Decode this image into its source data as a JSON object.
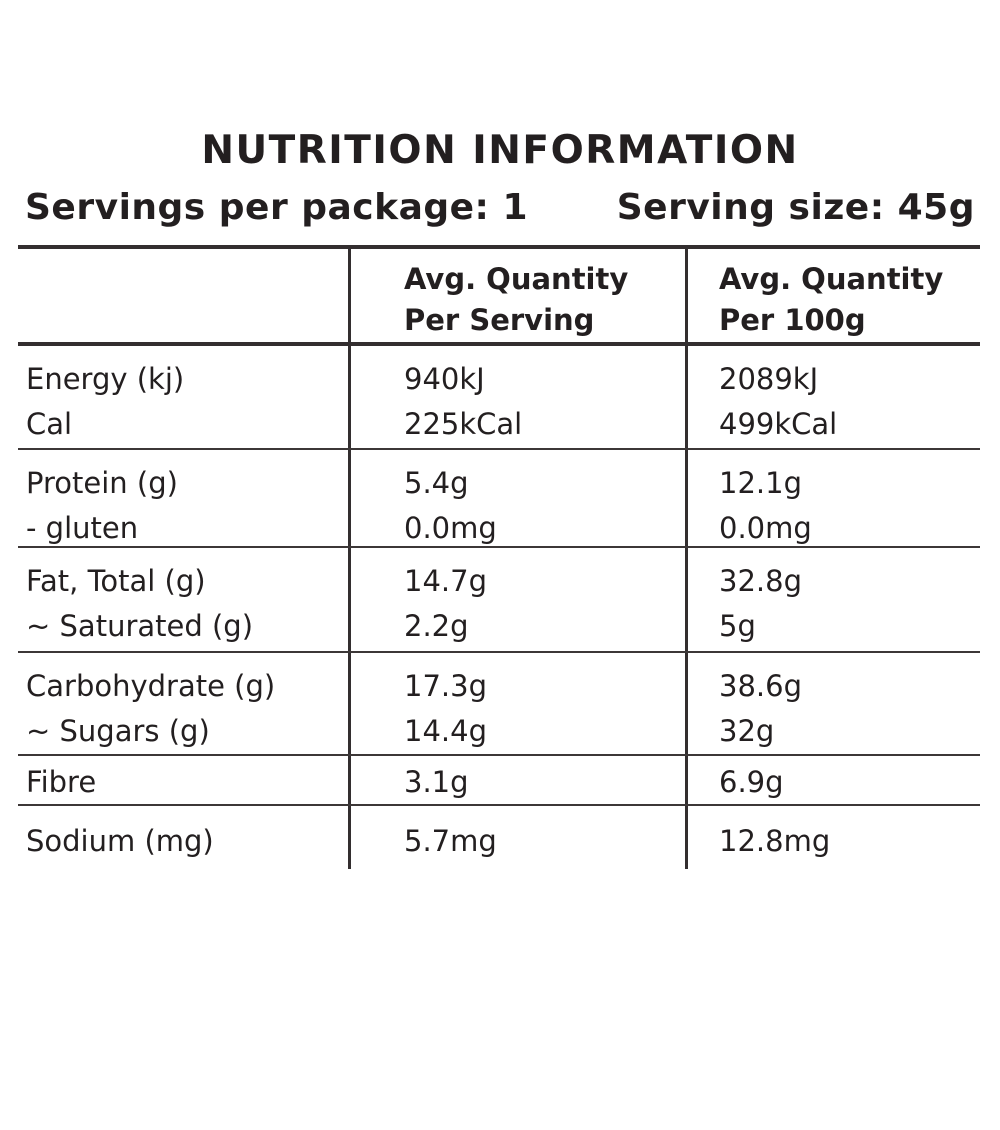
{
  "title": "NUTRITION INFORMATION",
  "serving_info": {
    "servings_per_package": "Servings per package: 1",
    "serving_size": "Serving size: 45g"
  },
  "table": {
    "header": {
      "col2_lines": [
        "Avg. Quantity",
        "Per Serving"
      ],
      "col3_lines": [
        "Avg. Quantity",
        "Per 100g"
      ]
    },
    "rows": [
      {
        "label_lines": [
          "Energy (kj)",
          "Cal"
        ],
        "per_serving_lines": [
          "940kJ",
          "225kCal"
        ],
        "per_100g_lines": [
          "2089kJ",
          "499kCal"
        ]
      },
      {
        "label_lines": [
          "Protein (g)",
          "- gluten"
        ],
        "per_serving_lines": [
          "5.4g",
          "0.0mg"
        ],
        "per_100g_lines": [
          "12.1g",
          "0.0mg"
        ]
      },
      {
        "label_lines": [
          "Fat, Total (g)",
          "~ Saturated (g)"
        ],
        "per_serving_lines": [
          "14.7g",
          "2.2g"
        ],
        "per_100g_lines": [
          "32.8g",
          "5g"
        ]
      },
      {
        "label_lines": [
          "Carbohydrate (g)",
          "~ Sugars (g)"
        ],
        "per_serving_lines": [
          "17.3g",
          "14.4g"
        ],
        "per_100g_lines": [
          "38.6g",
          "32g"
        ]
      },
      {
        "label_lines": [
          "Fibre"
        ],
        "per_serving_lines": [
          "3.1g"
        ],
        "per_100g_lines": [
          "6.9g"
        ]
      },
      {
        "label_lines": [
          "Sodium (mg)"
        ],
        "per_serving_lines": [
          "5.7mg"
        ],
        "per_100g_lines": [
          "12.8mg"
        ]
      }
    ]
  },
  "colors": {
    "ink": "#231f20",
    "line_strong": "#332e2f",
    "line_thin": "#3c3737",
    "background": "#ffffff"
  }
}
